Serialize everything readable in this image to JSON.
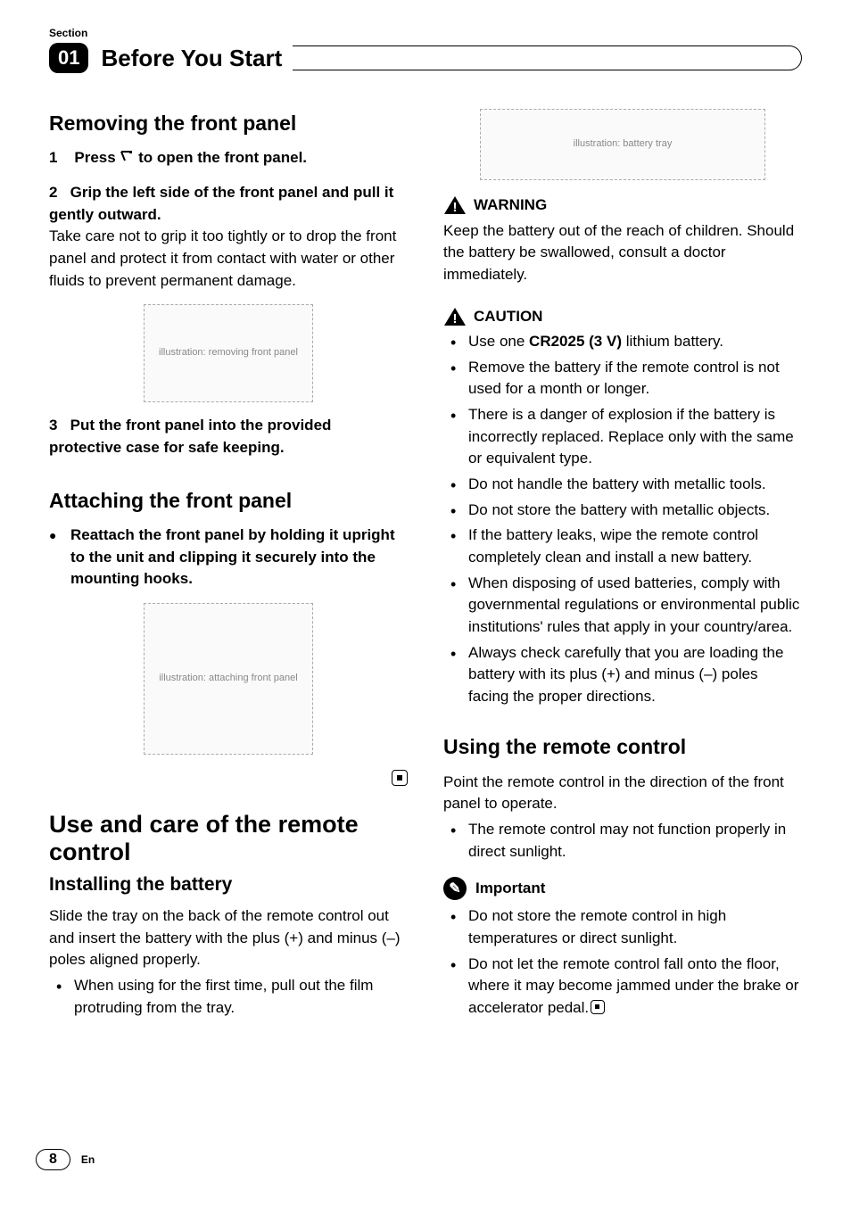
{
  "section_label": "Section",
  "chapter": {
    "number": "01",
    "title": "Before You Start"
  },
  "left": {
    "h_remove": "Removing the front panel",
    "step1_num": "1",
    "step1_text_a": "Press ",
    "step1_text_b": " to open the front panel.",
    "step2_num": "2",
    "step2_text": "Grip the left side of the front panel and pull it gently outward.",
    "step2_body": "Take care not to grip it too tightly or to drop the front panel and protect it from contact with water or other fluids to prevent permanent damage.",
    "step3_num": "3",
    "step3_text": "Put the front panel into the provided protective case for safe keeping.",
    "h_attach": "Attaching the front panel",
    "attach_step": "Reattach the front panel by holding it upright to the unit and clipping it securely into the mounting hooks.",
    "h_big": "Use and care of the remote control",
    "h_install": "Installing the battery",
    "install_body": "Slide the tray on the back of the remote control out and insert the battery with the plus (+) and minus (–) poles aligned properly.",
    "install_bullet": "When using for the first time, pull out the film protruding from the tray.",
    "img1_alt": "illustration: removing front panel",
    "img2_alt": "illustration: attaching front panel"
  },
  "right": {
    "img3_alt": "illustration: battery tray",
    "warn_label": "WARNING",
    "warn_body": "Keep the battery out of the reach of children. Should the battery be swallowed, consult a doctor immediately.",
    "caution_label": "CAUTION",
    "caution_items": [
      {
        "pre": "Use one ",
        "bold": "CR2025 (3 V)",
        "post": " lithium battery."
      },
      {
        "pre": "Remove the battery if the remote control is not used for a month or longer.",
        "bold": "",
        "post": ""
      },
      {
        "pre": "There is a danger of explosion if the battery is incorrectly replaced. Replace only with the same or equivalent type.",
        "bold": "",
        "post": ""
      },
      {
        "pre": "Do not handle the battery with metallic tools.",
        "bold": "",
        "post": ""
      },
      {
        "pre": "Do not store the battery with metallic objects.",
        "bold": "",
        "post": ""
      },
      {
        "pre": "If the battery leaks, wipe the remote control completely clean and install a new battery.",
        "bold": "",
        "post": ""
      },
      {
        "pre": "When disposing of used batteries, comply with governmental regulations or environmental public institutions' rules that apply in your country/area.",
        "bold": "",
        "post": ""
      },
      {
        "pre": "Always check carefully that you are loading the battery with its plus (+) and minus (–) poles facing the proper directions.",
        "bold": "",
        "post": ""
      }
    ],
    "h_using": "Using the remote control",
    "using_body": "Point the remote control in the direction of the front panel to operate.",
    "using_bullet": "The remote control may not function properly in direct sunlight.",
    "imp_label": "Important",
    "imp_items": [
      "Do not store the remote control in high temperatures or direct sunlight.",
      "Do not let the remote control fall onto the floor, where it may become jammed under the brake or accelerator pedal."
    ]
  },
  "footer": {
    "page": "8",
    "lang": "En"
  },
  "colors": {
    "text": "#000000",
    "bg": "#ffffff"
  }
}
